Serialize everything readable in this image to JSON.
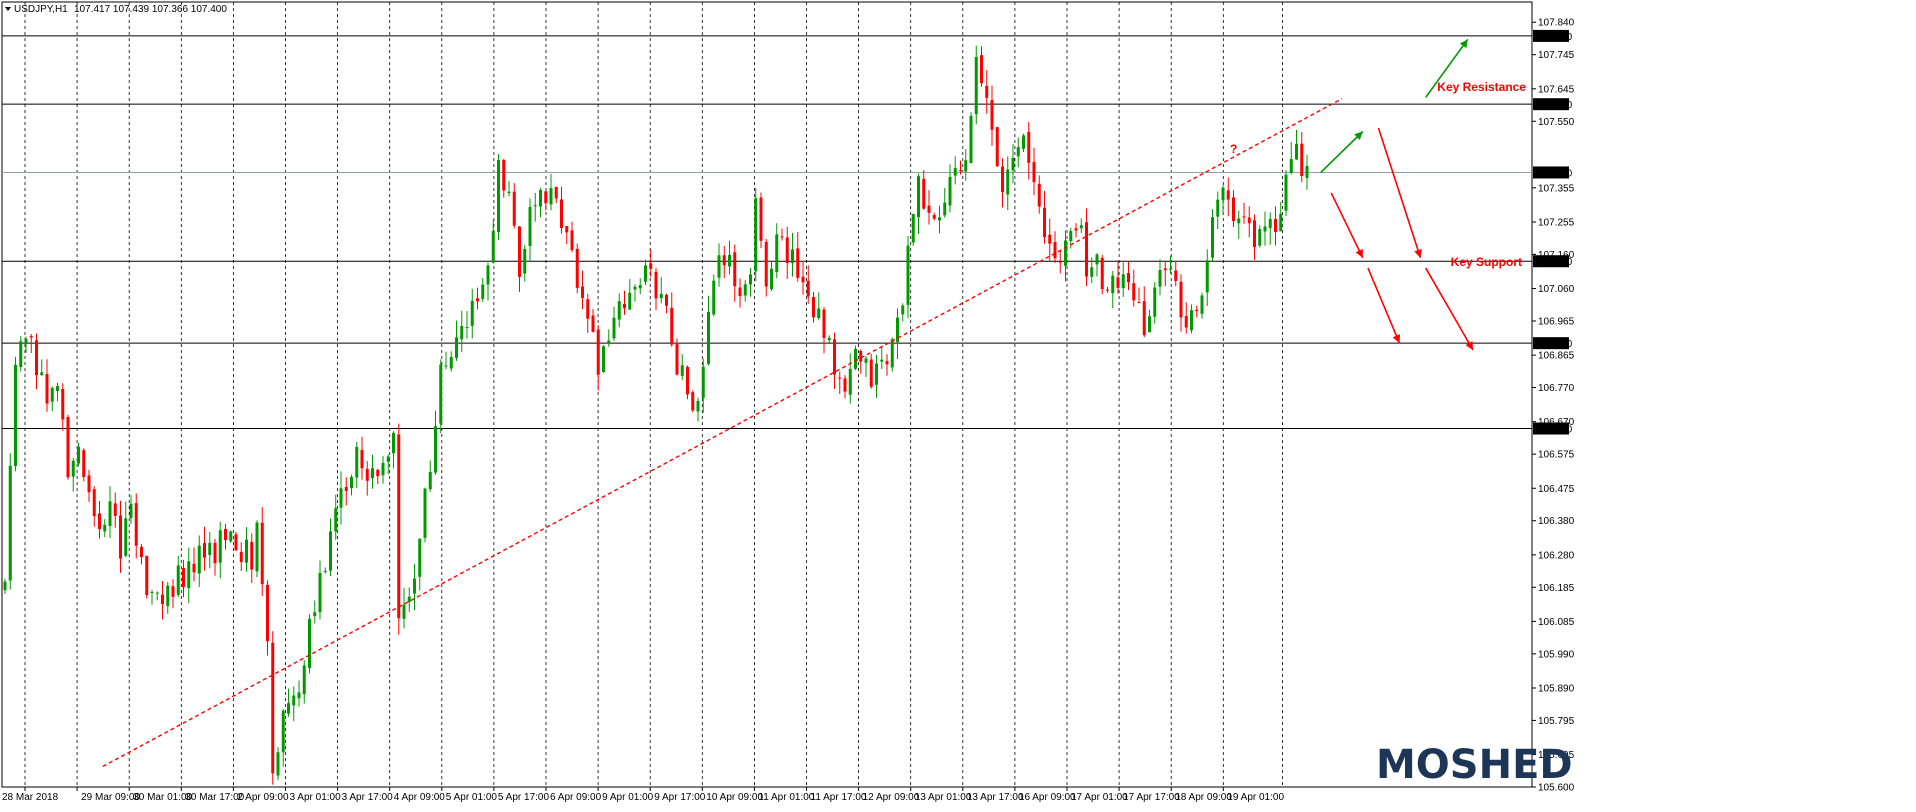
{
  "header": {
    "symbol": "USDJPY,H1",
    "ohlc": "107.417 107.439 107.366 107.400"
  },
  "brand": {
    "logo_text": "MOSHED",
    "color": "#1d3557"
  },
  "colors": {
    "bull": "#009900",
    "bear": "#ff0000",
    "trendline": "#ff0000",
    "level_line": "#000000",
    "current_line": "#8f9fb0",
    "grid": "#000000",
    "arrow_up": "#009900",
    "arrow_down": "#ff0000"
  },
  "chart_data": {
    "type": "candlestick",
    "title": "USDJPY,H1",
    "y_ticks": [
      "107.840",
      "107.745",
      "107.645",
      "107.550",
      "107.355",
      "107.255",
      "107.160",
      "107.060",
      "106.965",
      "106.865",
      "106.770",
      "106.670",
      "106.575",
      "106.475",
      "106.380",
      "106.280",
      "106.185",
      "106.085",
      "105.990",
      "105.890",
      "105.795",
      "105.695",
      "105.600"
    ],
    "ylim": [
      105.6,
      107.87
    ],
    "x_ticks": [
      "28 Mar 2018",
      "29 Mar 09:00",
      "30 Mar 01:00",
      "30 Mar 17:00",
      "2 Apr 09:00",
      "3 Apr 01:00",
      "3 Apr 17:00",
      "4 Apr 09:00",
      "5 Apr 01:00",
      "5 Apr 17:00",
      "6 Apr 09:00",
      "9 Apr 01:00",
      "9 Apr 17:00",
      "10 Apr 09:00",
      "11 Apr 01:00",
      "11 Apr 17:00",
      "12 Apr 09:00",
      "13 Apr 01:00",
      "13 Apr 17:00",
      "16 Apr 09:00",
      "17 Apr 01:00",
      "17 Apr 17:00",
      "18 Apr 09:00",
      "19 Apr 01:00"
    ],
    "levels": [
      {
        "price": 107.8,
        "label": "107.800",
        "name": ""
      },
      {
        "price": 107.6,
        "label": "107.600",
        "name": "Key Resistance"
      },
      {
        "price": 107.4,
        "label": "107.400",
        "name": "",
        "current": true
      },
      {
        "price": 107.14,
        "label": "107.140",
        "name": "Key Support"
      },
      {
        "price": 106.9,
        "label": "106.900",
        "name": ""
      },
      {
        "price": 106.65,
        "label": "106.650",
        "name": ""
      }
    ],
    "trendline": {
      "start": {
        "bar": 19,
        "price": 105.66
      },
      "end": {
        "bar": 270,
        "price": 107.74
      }
    },
    "question_mark": "?",
    "close_path": [
      [
        0,
        106.2
      ],
      [
        2,
        106.8
      ],
      [
        4,
        106.95
      ],
      [
        6,
        106.85
      ],
      [
        8,
        106.7
      ],
      [
        10,
        106.8
      ],
      [
        12,
        106.5
      ],
      [
        14,
        106.6
      ],
      [
        16,
        106.45
      ],
      [
        18,
        106.35
      ],
      [
        20,
        106.45
      ],
      [
        22,
        106.25
      ],
      [
        24,
        106.45
      ],
      [
        26,
        106.25
      ],
      [
        28,
        106.15
      ],
      [
        32,
        106.2
      ],
      [
        36,
        106.25
      ],
      [
        40,
        106.3
      ],
      [
        42,
        106.35
      ],
      [
        44,
        106.3
      ],
      [
        47,
        106.28
      ],
      [
        48,
        106.4
      ],
      [
        50,
        106.05
      ],
      [
        51,
        105.67
      ],
      [
        53,
        105.8
      ],
      [
        56,
        105.9
      ],
      [
        60,
        106.2
      ],
      [
        64,
        106.45
      ],
      [
        67,
        106.6
      ],
      [
        70,
        106.5
      ],
      [
        73,
        106.55
      ],
      [
        74,
        106.62
      ],
      [
        75,
        106.1
      ],
      [
        77,
        106.15
      ],
      [
        81,
        106.55
      ],
      [
        83,
        106.8
      ],
      [
        86,
        106.9
      ],
      [
        89,
        107.0
      ],
      [
        92,
        107.1
      ],
      [
        94,
        107.4
      ],
      [
        96,
        107.3
      ],
      [
        98,
        107.1
      ],
      [
        100,
        107.3
      ],
      [
        103,
        107.35
      ],
      [
        106,
        107.25
      ],
      [
        109,
        107.1
      ],
      [
        111,
        106.95
      ],
      [
        113,
        106.85
      ],
      [
        116,
        106.95
      ],
      [
        119,
        107.05
      ],
      [
        122,
        107.1
      ],
      [
        125,
        107.05
      ],
      [
        128,
        106.85
      ],
      [
        130,
        106.75
      ],
      [
        132,
        106.7
      ],
      [
        135,
        107.1
      ],
      [
        137,
        107.15
      ],
      [
        140,
        107.05
      ],
      [
        142,
        107.1
      ],
      [
        143,
        107.3
      ],
      [
        145,
        107.1
      ],
      [
        147,
        107.2
      ],
      [
        150,
        107.15
      ],
      [
        153,
        107.05
      ],
      [
        156,
        106.95
      ],
      [
        158,
        106.8
      ],
      [
        160,
        106.75
      ],
      [
        162,
        106.85
      ],
      [
        165,
        106.8
      ],
      [
        168,
        106.85
      ],
      [
        170,
        106.95
      ],
      [
        172,
        107.15
      ],
      [
        174,
        107.35
      ],
      [
        177,
        107.25
      ],
      [
        180,
        107.35
      ],
      [
        183,
        107.45
      ],
      [
        185,
        107.7
      ],
      [
        187,
        107.6
      ],
      [
        188,
        107.5
      ],
      [
        190,
        107.35
      ],
      [
        192,
        107.45
      ],
      [
        194,
        107.55
      ],
      [
        196,
        107.35
      ],
      [
        198,
        107.2
      ],
      [
        200,
        107.15
      ],
      [
        203,
        107.2
      ],
      [
        205,
        107.25
      ],
      [
        206,
        107.1
      ],
      [
        208,
        107.15
      ],
      [
        210,
        107.05
      ],
      [
        213,
        107.1
      ],
      [
        215,
        107.0
      ],
      [
        217,
        106.95
      ],
      [
        220,
        107.1
      ],
      [
        222,
        107.15
      ],
      [
        224,
        106.95
      ],
      [
        226,
        107.0
      ],
      [
        228,
        107.05
      ],
      [
        230,
        107.3
      ],
      [
        232,
        107.35
      ],
      [
        234,
        107.3
      ],
      [
        236,
        107.25
      ],
      [
        238,
        107.2
      ],
      [
        240,
        107.25
      ],
      [
        242,
        107.2
      ],
      [
        244,
        107.35
      ],
      [
        246,
        107.45
      ],
      [
        248,
        107.4
      ]
    ],
    "projections": [
      {
        "direction": "up",
        "from": {
          "bar": 271,
          "price": 107.62
        },
        "to": {
          "bar": 279,
          "price": 107.79
        }
      },
      {
        "direction": "up",
        "from": {
          "bar": 251,
          "price": 107.4
        },
        "to": {
          "bar": 259,
          "price": 107.52
        }
      },
      {
        "direction": "down",
        "from": {
          "bar": 253,
          "price": 107.34
        },
        "to": {
          "bar": 259,
          "price": 107.15
        }
      },
      {
        "direction": "down",
        "from": {
          "bar": 260,
          "price": 107.12
        },
        "to": {
          "bar": 266,
          "price": 106.9
        }
      },
      {
        "direction": "down",
        "from": {
          "bar": 262,
          "price": 107.53
        },
        "to": {
          "bar": 270,
          "price": 107.15
        }
      },
      {
        "direction": "down",
        "from": {
          "bar": 271,
          "price": 107.12
        },
        "to": {
          "bar": 280,
          "price": 106.88
        }
      }
    ],
    "grid": "vertical dashed",
    "legend": "none"
  }
}
